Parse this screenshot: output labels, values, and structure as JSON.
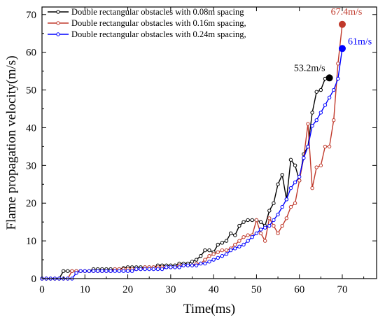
{
  "chart_data": {
    "type": "line",
    "title": "",
    "xlabel": "Time(ms)",
    "ylabel": "Flame propagation velocity(m/s)",
    "xlim": [
      0,
      78
    ],
    "ylim": [
      0,
      72
    ],
    "xticks": [
      0,
      10,
      20,
      30,
      40,
      50,
      60,
      70
    ],
    "yticks": [
      0,
      10,
      20,
      30,
      40,
      50,
      60,
      70
    ],
    "grid": false,
    "legend_position": "top-left",
    "series": [
      {
        "name": "Double rectangular obstacles with 0.08m spacing",
        "color": "#000000",
        "x": [
          0,
          1,
          2,
          3,
          4,
          5,
          6,
          7,
          8,
          9,
          10,
          11,
          12,
          13,
          14,
          15,
          16,
          17,
          18,
          19,
          20,
          21,
          22,
          23,
          24,
          25,
          26,
          27,
          28,
          29,
          30,
          31,
          32,
          33,
          34,
          35,
          36,
          37,
          38,
          39,
          40,
          41,
          42,
          43,
          44,
          45,
          46,
          47,
          48,
          49,
          50,
          51,
          52,
          53,
          54,
          55,
          56,
          57,
          58,
          59,
          60,
          61,
          62,
          63,
          64,
          65,
          66,
          67
        ],
        "y": [
          0,
          0,
          0,
          0,
          0,
          2,
          2,
          2,
          2,
          2,
          2,
          2,
          2.5,
          2.5,
          2.5,
          2.5,
          2.5,
          2.5,
          2.5,
          2.8,
          3,
          3,
          3,
          3,
          3,
          3,
          3,
          3.5,
          3.5,
          3.5,
          3.5,
          3.5,
          4,
          4,
          4,
          4.5,
          5,
          6,
          7.5,
          7.5,
          7,
          9,
          9.5,
          10,
          12,
          11.5,
          14,
          15,
          15.5,
          15.5,
          15.5,
          15,
          14,
          18,
          20,
          25,
          27.5,
          21,
          31.5,
          30,
          26,
          33,
          35,
          44,
          49.5,
          50,
          53,
          53.2
        ]
      },
      {
        "name": "Double rectangular obstacles with 0.16m spacing,",
        "color": "#c0392b",
        "x": [
          0,
          1,
          2,
          3,
          4,
          5,
          6,
          7,
          8,
          9,
          10,
          11,
          12,
          13,
          14,
          15,
          16,
          17,
          18,
          19,
          20,
          21,
          22,
          23,
          24,
          25,
          26,
          27,
          28,
          29,
          30,
          31,
          32,
          33,
          34,
          35,
          36,
          37,
          38,
          39,
          40,
          41,
          42,
          43,
          44,
          45,
          46,
          47,
          48,
          49,
          50,
          51,
          52,
          53,
          54,
          55,
          56,
          57,
          58,
          59,
          60,
          61,
          62,
          63,
          64,
          65,
          66,
          67,
          68,
          69,
          70
        ],
        "y": [
          0,
          0,
          0,
          0,
          0,
          0,
          0,
          2,
          2,
          2,
          2,
          2,
          2,
          2,
          2,
          2,
          2,
          2.5,
          2.5,
          2.5,
          2.5,
          2.5,
          2.5,
          2.5,
          3,
          3,
          3,
          3,
          3,
          3,
          3,
          3,
          3.5,
          3.5,
          3.5,
          3.5,
          4,
          4,
          5,
          6,
          6.5,
          7,
          7.5,
          7.5,
          8,
          9,
          10,
          11,
          11.5,
          11.5,
          15.5,
          12,
          10,
          16,
          14,
          12,
          14,
          16,
          19,
          20,
          26,
          32,
          41,
          24,
          29.5,
          30,
          35,
          35,
          42,
          57,
          67.4
        ]
      },
      {
        "name": "Double rectangular obstacles with 0.24m spacing,",
        "color": "#0000ff",
        "x": [
          0,
          1,
          2,
          3,
          4,
          5,
          6,
          7,
          8,
          9,
          10,
          11,
          12,
          13,
          14,
          15,
          16,
          17,
          18,
          19,
          20,
          21,
          22,
          23,
          24,
          25,
          26,
          27,
          28,
          29,
          30,
          31,
          32,
          33,
          34,
          35,
          36,
          37,
          38,
          39,
          40,
          41,
          42,
          43,
          44,
          45,
          46,
          47,
          48,
          49,
          50,
          51,
          52,
          53,
          54,
          55,
          56,
          57,
          58,
          59,
          60,
          61,
          62,
          63,
          64,
          65,
          66,
          67,
          68,
          69,
          70
        ],
        "y": [
          0,
          0,
          0,
          0,
          0,
          0,
          0,
          0,
          1.5,
          2,
          2,
          2,
          2,
          2,
          2,
          2,
          2,
          2,
          2,
          2,
          2,
          2,
          2.5,
          2.5,
          2.5,
          2.5,
          2.5,
          2.5,
          2.5,
          3,
          3,
          3,
          3,
          3.5,
          3.5,
          3.5,
          3.5,
          4,
          4,
          4.5,
          5,
          5.5,
          6,
          6.5,
          7.5,
          8,
          8.5,
          9,
          10,
          11,
          12,
          13,
          13.5,
          14,
          15.5,
          17,
          19,
          21,
          24,
          25.5,
          27,
          32,
          35,
          40.5,
          42,
          44,
          46,
          48,
          50,
          53,
          61
        ]
      }
    ],
    "annotations": [
      {
        "text": "53.2m/s",
        "x": 67,
        "y": 53.2,
        "color": "#000000"
      },
      {
        "text": "67.4m/s",
        "x": 70,
        "y": 67.4,
        "color": "#c0392b"
      },
      {
        "text": "61m/s",
        "x": 70,
        "y": 61,
        "color": "#0000ff"
      }
    ]
  }
}
